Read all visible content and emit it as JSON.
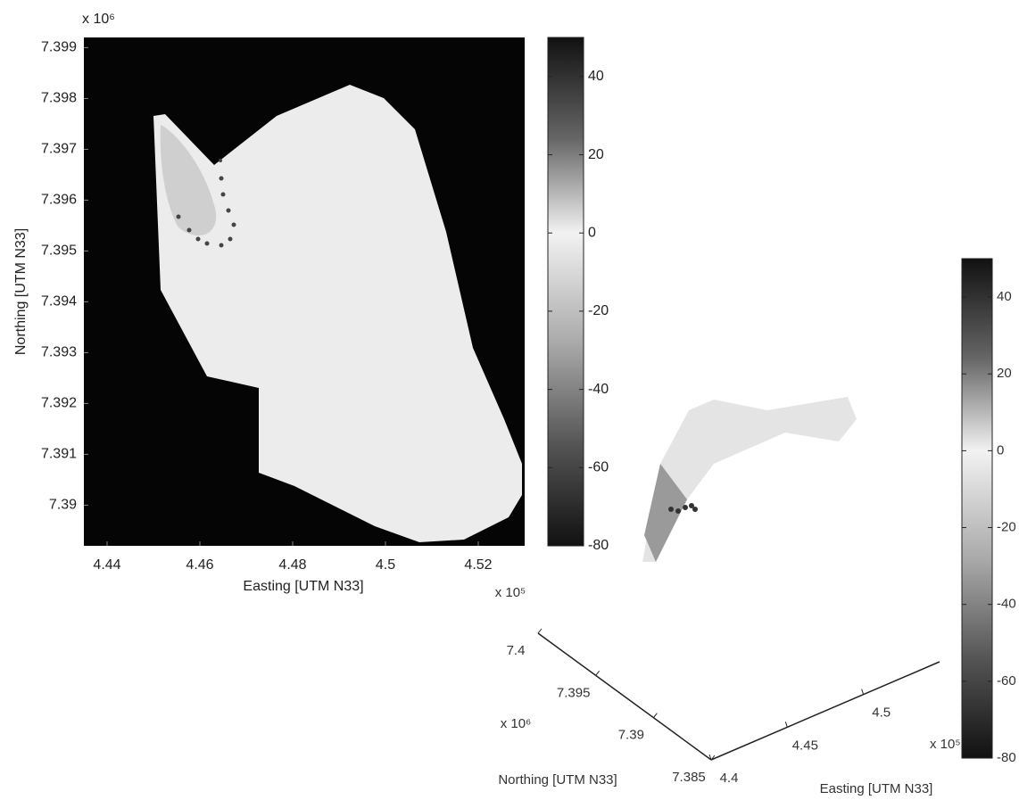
{
  "chart_data": [
    {
      "type": "map",
      "xlabel": "Easting [UTM N33]",
      "ylabel": "Northing [UTM N33]",
      "y_exponent": "x 10⁶",
      "xlim": [
        4.435,
        4.53
      ],
      "xticks": [
        4.44,
        4.46,
        4.48,
        4.5,
        4.52
      ],
      "ylim": [
        7.3892,
        7.3992
      ],
      "yticks": [
        7.39,
        7.391,
        7.392,
        7.393,
        7.394,
        7.395,
        7.396,
        7.397,
        7.398,
        7.399
      ],
      "colorbar": {
        "clim": [
          -80,
          50
        ],
        "ticks": [
          40,
          20,
          0,
          -20,
          -40,
          -60,
          -80
        ]
      }
    },
    {
      "type": "surface3d",
      "xlabel": "Easting [UTM N33]",
      "ylabel": "Northing [UTM N33]",
      "x_exponent": "x 10⁵",
      "y_exponent": "x 10⁶",
      "z_exponent": "x 10⁵",
      "xlim": [
        4.4,
        4.55
      ],
      "xticks": [
        4.4,
        4.45,
        4.5
      ],
      "ylim": [
        7.385,
        7.4
      ],
      "yticks": [
        7.4,
        7.395,
        7.39,
        7.385
      ],
      "colorbar": {
        "clim": [
          -80,
          50
        ],
        "ticks": [
          40,
          20,
          0,
          -20,
          -40,
          -60,
          -80
        ]
      }
    }
  ]
}
